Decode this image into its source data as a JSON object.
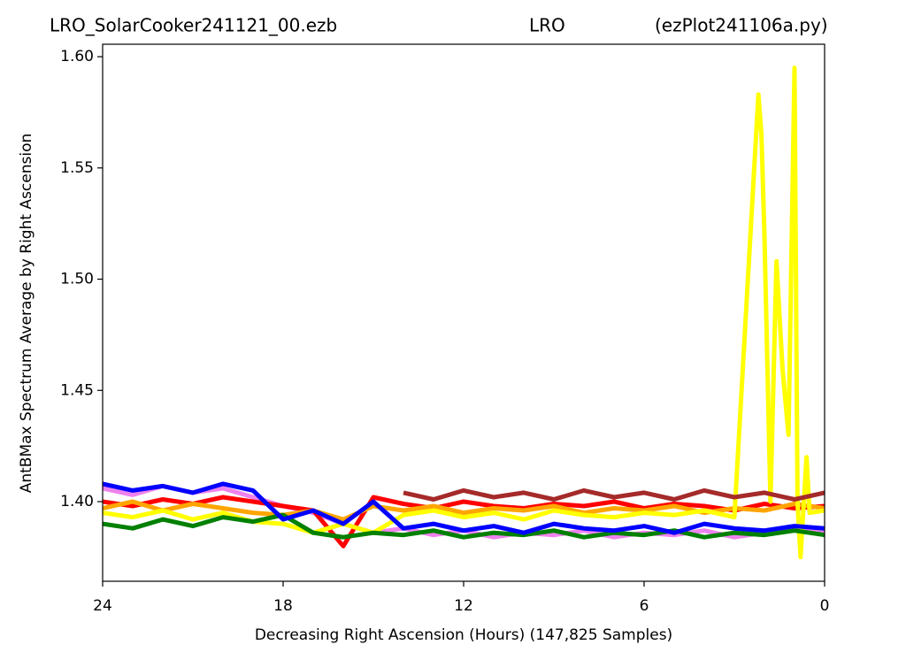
{
  "chart_data": {
    "type": "line",
    "title": [
      "LRO_SolarCooker241121_00.ezb",
      "LRO",
      "(ezPlot241106a.py)"
    ],
    "xlabel": "Decreasing Right Ascension (Hours) (147,825 Samples)",
    "ylabel": "AntBMax Spectrum Average by Right Ascension",
    "xlim": [
      24,
      0
    ],
    "ylim": [
      1.3642,
      1.6056
    ],
    "xticks": [
      24,
      18,
      12,
      6,
      0
    ],
    "yticks": [
      {
        "value": 1.4,
        "label": "1.40"
      },
      1.45,
      {
        "value": 1.5,
        "label": "1.50"
      },
      1.55,
      {
        "value": 1.6,
        "label": "1.60"
      }
    ],
    "x": [
      24,
      23,
      22,
      21,
      20,
      19,
      18,
      17,
      16,
      15,
      14,
      13,
      12,
      11,
      10,
      9,
      8,
      7,
      6,
      5,
      4,
      3,
      2,
      1,
      0
    ],
    "series": [
      {
        "color": "#ee82ee",
        "values": [
          1.406,
          1.403,
          1.407,
          1.404,
          1.406,
          1.402,
          1.398,
          1.395,
          1.39,
          1.386,
          1.388,
          1.385,
          1.387,
          1.384,
          1.386,
          1.385,
          1.387,
          1.384,
          1.386,
          1.385,
          1.387,
          1.384,
          1.386,
          1.388,
          1.386
        ]
      },
      {
        "color": "#ff0000",
        "values": [
          1.4,
          1.398,
          1.401,
          1.399,
          1.402,
          1.4,
          1.398,
          1.396,
          1.38,
          1.402,
          1.399,
          1.397,
          1.4,
          1.398,
          1.397,
          1.399,
          1.398,
          1.4,
          1.397,
          1.399,
          1.398,
          1.396,
          1.399,
          1.397,
          1.398
        ]
      },
      {
        "color": "#ffa500",
        "values": [
          1.397,
          1.4,
          1.396,
          1.399,
          1.397,
          1.395,
          1.394,
          1.396,
          1.392,
          1.398,
          1.396,
          1.398,
          1.395,
          1.397,
          1.396,
          1.398,
          1.395,
          1.397,
          1.396,
          1.398,
          1.395,
          1.397,
          1.396,
          1.399,
          1.397
        ]
      },
      {
        "color": "#ffff00",
        "x": [
          24,
          23,
          22,
          21,
          20,
          19,
          18,
          17,
          16,
          15,
          14,
          13,
          12,
          11,
          10,
          9,
          8,
          7,
          6,
          5,
          4,
          3,
          2.2,
          2.1,
          2.0,
          1.8,
          1.6,
          1.4,
          1.2,
          1.0,
          0.9,
          0.8,
          0.6,
          0.5,
          0
        ],
        "values": [
          1.395,
          1.393,
          1.396,
          1.392,
          1.395,
          1.391,
          1.39,
          1.386,
          1.39,
          1.386,
          1.394,
          1.396,
          1.393,
          1.395,
          1.392,
          1.396,
          1.394,
          1.393,
          1.395,
          1.394,
          1.396,
          1.393,
          1.583,
          1.565,
          1.52,
          1.4,
          1.508,
          1.46,
          1.43,
          1.595,
          1.4,
          1.375,
          1.42,
          1.395,
          1.396
        ]
      },
      {
        "color": "#008000",
        "values": [
          1.39,
          1.388,
          1.392,
          1.389,
          1.393,
          1.391,
          1.394,
          1.386,
          1.384,
          1.386,
          1.385,
          1.387,
          1.384,
          1.386,
          1.385,
          1.387,
          1.384,
          1.386,
          1.385,
          1.387,
          1.384,
          1.386,
          1.385,
          1.387,
          1.385
        ]
      },
      {
        "color": "#0000ff",
        "values": [
          1.408,
          1.405,
          1.407,
          1.404,
          1.408,
          1.405,
          1.392,
          1.396,
          1.39,
          1.4,
          1.388,
          1.39,
          1.387,
          1.389,
          1.386,
          1.39,
          1.388,
          1.387,
          1.389,
          1.386,
          1.39,
          1.388,
          1.387,
          1.389,
          1.388
        ]
      },
      {
        "color": "#a52a2a",
        "values": [
          null,
          null,
          null,
          null,
          null,
          null,
          null,
          null,
          null,
          null,
          1.404,
          1.401,
          1.405,
          1.402,
          1.404,
          1.401,
          1.405,
          1.402,
          1.404,
          1.401,
          1.405,
          1.402,
          1.404,
          1.401,
          1.404
        ]
      }
    ]
  }
}
